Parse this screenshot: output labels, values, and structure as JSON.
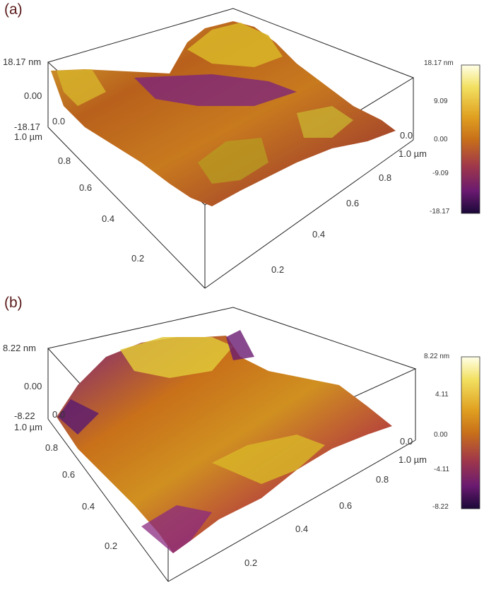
{
  "panels": [
    {
      "label": "(a)",
      "z_top": "18.17 nm",
      "z_mid": "0.00",
      "z_bottom": "-18.17",
      "left_axis_ticks": [
        "1.0 µm",
        "0.8",
        "0.6",
        "0.4",
        "0.2"
      ],
      "left_origin": "0.0",
      "right_axis_ticks": [
        "0.0",
        "1.0 µm",
        "0.8",
        "0.6",
        "0.4",
        "0.2"
      ],
      "colorbar_ticks": [
        "18.17 nm",
        "9.09",
        "0.00",
        "-9.09",
        "-18.17"
      ]
    },
    {
      "label": "(b)",
      "z_top": "8.22 nm",
      "z_mid": "0.00",
      "z_bottom": "-8.22",
      "left_axis_ticks": [
        "1.0 µm",
        "0.8",
        "0.6",
        "0.4",
        "0.2"
      ],
      "left_origin": "0.0",
      "right_axis_ticks": [
        "0.0",
        "1.0 µm",
        "0.8",
        "0.6",
        "0.4",
        "0.2"
      ],
      "colorbar_ticks": [
        "8.22 nm",
        "4.11",
        "0.00",
        "-4.11",
        "-8.22"
      ]
    }
  ],
  "colorbar_colors": [
    "#ffffe8",
    "#f2e060",
    "#e0a020",
    "#c8701a",
    "#a0384a",
    "#6a1a70",
    "#1a0838"
  ]
}
